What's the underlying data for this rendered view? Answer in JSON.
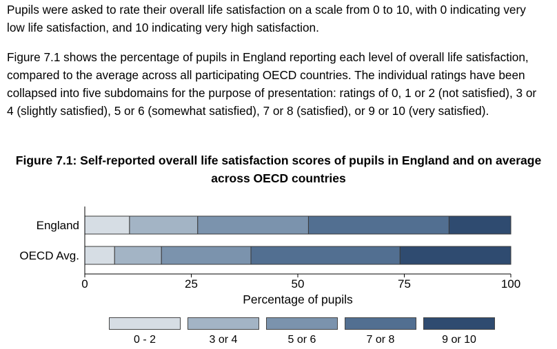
{
  "intro_paragraph": "Pupils were asked to rate their overall life satisfaction on a scale from 0 to 10, with 0 indicating very low life satisfaction, and 10 indicating very high satisfaction.",
  "description_paragraph": "Figure 7.1 shows the percentage of pupils in England reporting each level of overall life satisfaction, compared to the average across all participating OECD countries. The individual ratings have been collapsed into five subdomains for the purpose of presentation: ratings of 0, 1 or 2 (not satisfied), 3 or 4 (slightly satisfied), 5 or 6 (somewhat satisfied), 7 or 8 (satisfied), or 9 or 10 (very satisfied).",
  "figure_caption": "Figure 7.1: Self-reported overall life satisfaction scores of pupils in England and on average across OECD countries",
  "colors": [
    "#d6dde4",
    "#a3b4c5",
    "#7b93ad",
    "#526f91",
    "#2f4b70"
  ],
  "chart_data": {
    "type": "bar",
    "orientation": "horizontal",
    "stacked": true,
    "title": "Figure 7.1: Self-reported overall life satisfaction scores of pupils in England and on average across OECD countries",
    "xlabel": "Percentage of pupils",
    "ylabel": "",
    "xlim": [
      0,
      100
    ],
    "xticks": [
      0,
      25,
      50,
      75,
      100
    ],
    "categories": [
      "England",
      "OECD Avg."
    ],
    "series": [
      {
        "name": "0 - 2",
        "values": [
          10.5,
          7
        ]
      },
      {
        "name": "3 or 4",
        "values": [
          16,
          11
        ]
      },
      {
        "name": "5 or 6",
        "values": [
          26,
          21
        ]
      },
      {
        "name": "7 or 8",
        "values": [
          33,
          35
        ]
      },
      {
        "name": "9 or 10",
        "values": [
          14.5,
          26
        ]
      }
    ],
    "legend_position": "bottom",
    "grid": false
  }
}
